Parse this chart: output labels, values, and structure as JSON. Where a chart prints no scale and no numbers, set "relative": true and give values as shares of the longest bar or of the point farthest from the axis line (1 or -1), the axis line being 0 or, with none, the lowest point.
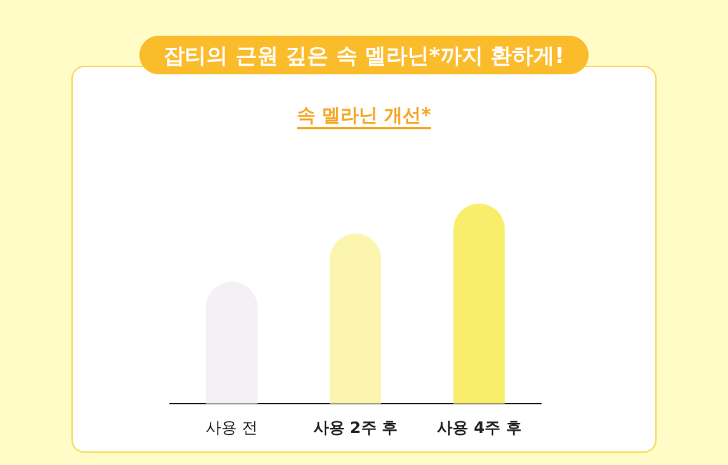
{
  "chart_data": {
    "type": "bar",
    "title": "잡티의 근원 깊은 속 멜라닌*까지 환하게!",
    "subtitle": "속 멜라닌 개선*",
    "categories": [
      "사용 전",
      "사용 2주 후",
      "사용 4주 후"
    ],
    "values": [
      0.61,
      0.85,
      1
    ],
    "colors": [
      "#f3f1f4",
      "#fbf5b0",
      "#f9ee6b"
    ],
    "relative": true
  }
}
